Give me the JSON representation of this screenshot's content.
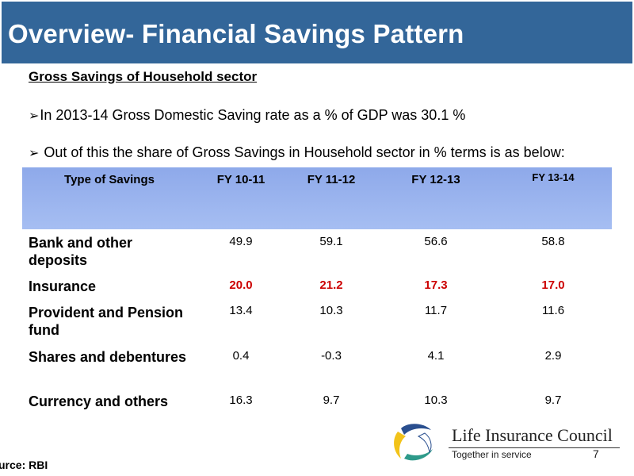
{
  "title": "Overview- Financial Savings Pattern",
  "subtitle": "Gross Savings of Household sector",
  "bullets": [
    "In 2013-14  Gross Domestic Saving rate as a  % of GDP was  30.1  %",
    " Out of this the share of Gross Savings in Household sector in %  terms is as below:"
  ],
  "table": {
    "headers": [
      "Type of Savings",
      "FY 10-11",
      "FY 11-12",
      "FY 12-13",
      "FY 13-14"
    ],
    "rows": [
      {
        "label": "Bank and other deposits",
        "values": [
          "49.9",
          "59.1",
          "56.6",
          "58.8"
        ]
      },
      {
        "label": "Insurance",
        "values": [
          "20.0",
          "21.2",
          "17.3",
          "17.0"
        ],
        "highlight": true
      },
      {
        "label": "Provident and Pension fund",
        "values": [
          "13.4",
          "10.3",
          "11.7",
          "11.6"
        ]
      },
      {
        "label": "Shares and debentures",
        "values": [
          "0.4",
          "-0.3",
          "4.1",
          "2.9"
        ]
      },
      {
        "label": "Currency and others",
        "values": [
          "16.3",
          "9.7",
          "10.3",
          "9.7"
        ]
      }
    ]
  },
  "source": "urce:   RBI",
  "logo": {
    "name": "Life Insurance Council",
    "tagline": "Together in service"
  },
  "page_number": "7",
  "colors": {
    "title_bar": "#336699",
    "header_band": "#9bb4ee",
    "highlight": "#cc0000"
  }
}
